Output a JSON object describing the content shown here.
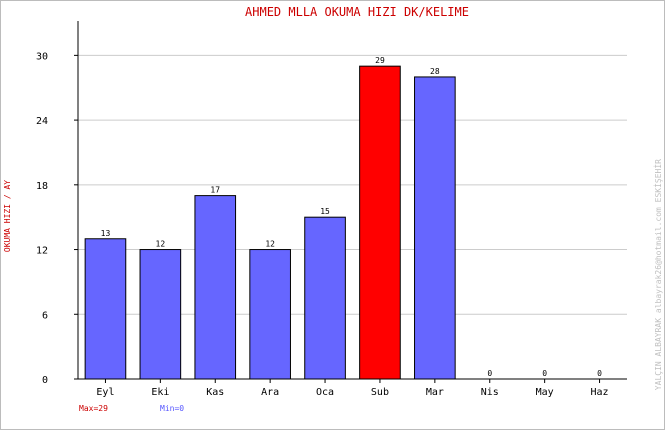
{
  "chart_data": {
    "type": "bar",
    "title": "AHMED MLLA    OKUMA HIZI  DK/KELIME",
    "ylabel": "OKUMA HIZI / AY",
    "xlabel": "",
    "categories": [
      "Eyl",
      "Eki",
      "Kas",
      "Ara",
      "Oca",
      "Sub",
      "Mar",
      "Nis",
      "May",
      "Haz"
    ],
    "values": [
      13,
      12,
      17,
      12,
      15,
      29,
      28,
      0,
      0,
      0
    ],
    "ylim": [
      0,
      33
    ],
    "yticks": [
      0,
      6,
      12,
      18,
      24,
      30
    ],
    "grid": true,
    "highlight_index": 5,
    "max_label": "Max=29",
    "min_label": "Min=0",
    "watermark": "YALÇIN ALBAYRAK  albayrak26@hotmail.com  ESKİŞEHİR"
  },
  "colors": {
    "bar": "#6666ff",
    "bar_max": "#ff0000",
    "title": "#cc0000",
    "ylabel": "#cc0000",
    "max_label": "#cc0000",
    "min_label": "#5555ff",
    "grid": "#cccccc",
    "axis": "#000000",
    "watermark": "#c0c0c0"
  }
}
